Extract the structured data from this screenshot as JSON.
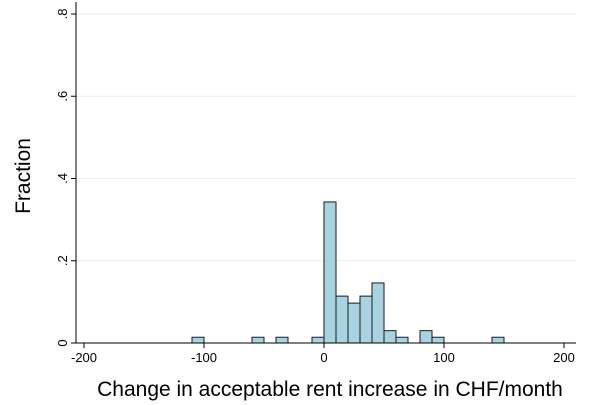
{
  "chart_data": {
    "type": "bar",
    "title": "",
    "xlabel": "Change in acceptable rent increase in CHF/month",
    "ylabel": "Fraction",
    "xlim": [
      -200,
      200
    ],
    "ylim": [
      0,
      0.8
    ],
    "xticks": [
      {
        "value": -200,
        "label": "-200"
      },
      {
        "value": -100,
        "label": "-100"
      },
      {
        "value": 0,
        "label": "0"
      },
      {
        "value": 100,
        "label": "100"
      },
      {
        "value": 200,
        "label": "200"
      }
    ],
    "yticks": [
      {
        "value": 0,
        "label": "0"
      },
      {
        "value": 0.2,
        "label": ".2"
      },
      {
        "value": 0.4,
        "label": ".4"
      },
      {
        "value": 0.6,
        "label": ".6"
      },
      {
        "value": 0.8,
        "label": ".8"
      }
    ],
    "grid": true,
    "bin_width": 10,
    "bins": [
      {
        "x": -110,
        "value": 0.014
      },
      {
        "x": -60,
        "value": 0.014
      },
      {
        "x": -40,
        "value": 0.014
      },
      {
        "x": -10,
        "value": 0.014
      },
      {
        "x": 0,
        "value": 0.343
      },
      {
        "x": 10,
        "value": 0.114
      },
      {
        "x": 20,
        "value": 0.097
      },
      {
        "x": 30,
        "value": 0.114
      },
      {
        "x": 40,
        "value": 0.146
      },
      {
        "x": 50,
        "value": 0.03
      },
      {
        "x": 60,
        "value": 0.014
      },
      {
        "x": 80,
        "value": 0.03
      },
      {
        "x": 90,
        "value": 0.014
      },
      {
        "x": 140,
        "value": 0.014
      }
    ],
    "colors": {
      "bar_fill": "#a8d4e2",
      "bar_stroke": "#1a1a1a",
      "grid": "#e6eef2",
      "axis": "#000000"
    }
  }
}
